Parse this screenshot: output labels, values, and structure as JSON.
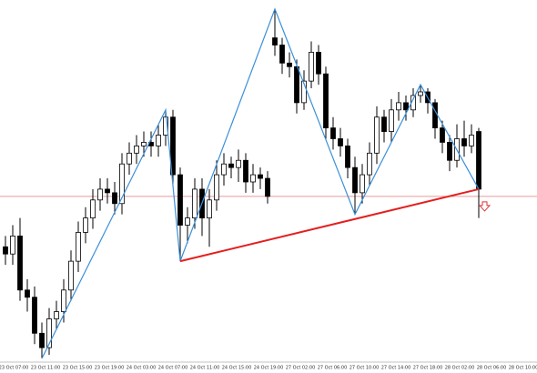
{
  "chart_data": {
    "type": "candlestick",
    "categories": [
      "23 Oct 07:00",
      "23 Oct 11:00",
      "23 Oct 15:00",
      "23 Oct 19:00",
      "24 Oct 03:00",
      "24 Oct 07:00",
      "24 Oct 11:00",
      "24 Oct 15:00",
      "24 Oct 19:00",
      "27 Oct 02:00",
      "27 Oct 06:00",
      "27 Oct 10:00",
      "27 Oct 14:00",
      "27 Oct 18:00",
      "28 Oct 02:00",
      "28 Oct 06:00",
      "28 Oct 10:00"
    ],
    "open": [
      32,
      30,
      35,
      20,
      18,
      8,
      4,
      12,
      14,
      20,
      28,
      36,
      40,
      45,
      48,
      47,
      44,
      55,
      58,
      60,
      61,
      60,
      63,
      68,
      52,
      38,
      40,
      48,
      40,
      45,
      52,
      55,
      54,
      56,
      50,
      52,
      51,
      90,
      88,
      83,
      82,
      72,
      78,
      86,
      80,
      65,
      62,
      60,
      54,
      47,
      52,
      58,
      68,
      64,
      70,
      72,
      70,
      74,
      75,
      72,
      65,
      61,
      56,
      62,
      60,
      64
    ],
    "high": [
      35,
      38,
      40,
      23,
      21,
      11,
      15,
      17,
      23,
      31,
      39,
      43,
      48,
      51,
      51,
      50,
      58,
      61,
      63,
      64,
      64,
      66,
      70,
      70,
      54,
      43,
      51,
      51,
      48,
      56,
      58,
      57,
      59,
      58,
      55,
      54,
      53,
      98,
      90,
      86,
      84,
      81,
      89,
      88,
      82,
      68,
      65,
      62,
      57,
      55,
      61,
      71,
      70,
      73,
      75,
      74,
      76,
      77,
      76,
      73,
      67,
      63,
      66,
      67,
      66,
      65
    ],
    "low": [
      27,
      27,
      17,
      14,
      5,
      1,
      2,
      9,
      11,
      17,
      25,
      33,
      37,
      42,
      44,
      41,
      41,
      52,
      55,
      57,
      57,
      57,
      60,
      49,
      28,
      33,
      37,
      35,
      32,
      42,
      49,
      51,
      50,
      47,
      47,
      48,
      44,
      85,
      80,
      79,
      69,
      70,
      76,
      77,
      62,
      59,
      57,
      51,
      41,
      44,
      49,
      55,
      61,
      61,
      67,
      67,
      68,
      72,
      69,
      62,
      58,
      53,
      54,
      57,
      58,
      40
    ],
    "close": [
      30,
      35,
      20,
      18,
      8,
      4,
      12,
      14,
      20,
      28,
      36,
      40,
      45,
      48,
      47,
      44,
      55,
      58,
      60,
      61,
      60,
      63,
      68,
      52,
      38,
      40,
      48,
      40,
      45,
      52,
      55,
      54,
      56,
      50,
      52,
      51,
      46,
      88,
      83,
      82,
      72,
      78,
      86,
      80,
      65,
      62,
      60,
      54,
      47,
      52,
      58,
      68,
      64,
      70,
      72,
      70,
      74,
      75,
      72,
      65,
      61,
      56,
      62,
      60,
      63,
      48
    ],
    "up_color": "#ffffff",
    "down_color": "#000000",
    "ylim": [
      0,
      100
    ],
    "zigzag": {
      "color": "#3b8fd9",
      "x": [
        5,
        22,
        24,
        37,
        48,
        57,
        65
      ],
      "values": [
        1,
        70,
        28,
        98,
        41,
        77,
        48
      ]
    },
    "trendline": {
      "color": "#e41e1e",
      "x": [
        24,
        65
      ],
      "values": [
        28,
        48
      ]
    },
    "level": {
      "color": "#e89a9a",
      "value": 46
    }
  }
}
